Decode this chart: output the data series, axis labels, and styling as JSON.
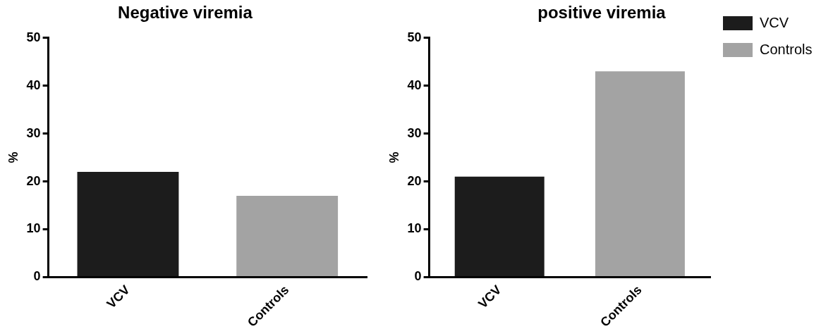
{
  "chart_data": [
    {
      "type": "bar",
      "title": "Negative viremia",
      "ylabel": "%",
      "categories": [
        "VCV",
        "Controls"
      ],
      "series": [
        {
          "color": "#1c1c1c",
          "values": [
            22,
            null
          ]
        },
        {
          "color": "#a3a3a3",
          "values": [
            null,
            17
          ]
        }
      ],
      "ylim": [
        0,
        50
      ],
      "yticks": [
        0,
        10,
        20,
        30,
        40,
        50
      ],
      "grid": false
    },
    {
      "type": "bar",
      "title": "positive viremia",
      "ylabel": "%",
      "categories": [
        "VCV",
        "Controls"
      ],
      "series": [
        {
          "name": "VCV",
          "color": "#1c1c1c",
          "values": [
            21,
            null
          ]
        },
        {
          "name": "Controls",
          "color": "#a3a3a3",
          "values": [
            null,
            43
          ]
        }
      ],
      "ylim": [
        0,
        50
      ],
      "yticks": [
        0,
        10,
        20,
        30,
        40,
        50
      ],
      "grid": false,
      "legend": "right"
    }
  ]
}
